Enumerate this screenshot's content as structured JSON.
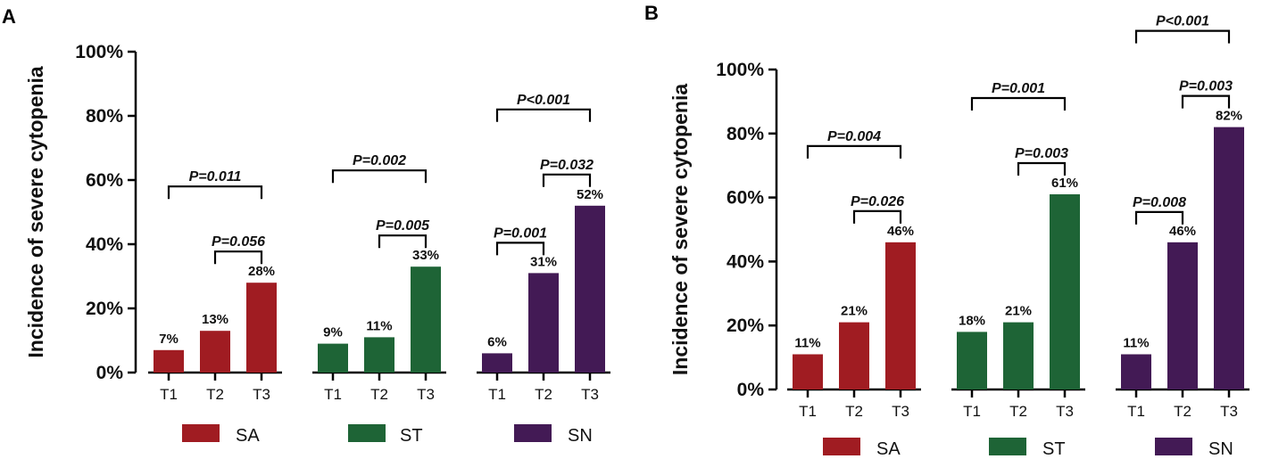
{
  "chart_data": [
    {
      "panel": "A",
      "type": "bar",
      "ylabel": "Incidence of severe cytopenia",
      "ylim": [
        0,
        100
      ],
      "yticks": [
        "0%",
        "20%",
        "40%",
        "60%",
        "80%",
        "100%"
      ],
      "groups": [
        {
          "name": "SA",
          "color": "#a01c22",
          "categories": [
            "T1",
            "T2",
            "T3"
          ],
          "values": [
            7,
            13,
            28
          ],
          "labels": [
            "7%",
            "13%",
            "28%"
          ],
          "comparisons": [
            {
              "from": 1,
              "to": 2,
              "text": "P=0.056"
            },
            {
              "from": 0,
              "to": 2,
              "text": "P=0.011"
            }
          ]
        },
        {
          "name": "ST",
          "color": "#1e6436",
          "categories": [
            "T1",
            "T2",
            "T3"
          ],
          "values": [
            9,
            11,
            33
          ],
          "labels": [
            "9%",
            "11%",
            "33%"
          ],
          "comparisons": [
            {
              "from": 1,
              "to": 2,
              "text": "P=0.005"
            },
            {
              "from": 0,
              "to": 2,
              "text": "P=0.002"
            }
          ]
        },
        {
          "name": "SN",
          "color": "#431a55",
          "categories": [
            "T1",
            "T2",
            "T3"
          ],
          "values": [
            6,
            31,
            52
          ],
          "labels": [
            "6%",
            "31%",
            "52%"
          ],
          "comparisons": [
            {
              "from": 0,
              "to": 1,
              "text": "P=0.001"
            },
            {
              "from": 1,
              "to": 2,
              "text": "P=0.032"
            },
            {
              "from": 0,
              "to": 2,
              "text": "P<0.001"
            }
          ]
        }
      ],
      "legend": [
        "SA",
        "ST",
        "SN"
      ]
    },
    {
      "panel": "B",
      "type": "bar",
      "ylabel": "Incidence of severe cytopenia",
      "ylim": [
        0,
        100
      ],
      "yticks": [
        "0%",
        "20%",
        "40%",
        "60%",
        "80%",
        "100%"
      ],
      "groups": [
        {
          "name": "SA",
          "color": "#a01c22",
          "categories": [
            "T1",
            "T2",
            "T3"
          ],
          "values": [
            11,
            21,
            46
          ],
          "labels": [
            "11%",
            "21%",
            "46%"
          ],
          "comparisons": [
            {
              "from": 1,
              "to": 2,
              "text": "P=0.026"
            },
            {
              "from": 0,
              "to": 2,
              "text": "P=0.004"
            }
          ]
        },
        {
          "name": "ST",
          "color": "#1e6436",
          "categories": [
            "T1",
            "T2",
            "T3"
          ],
          "values": [
            18,
            21,
            61
          ],
          "labels": [
            "18%",
            "21%",
            "61%"
          ],
          "comparisons": [
            {
              "from": 1,
              "to": 2,
              "text": "P=0.003"
            },
            {
              "from": 0,
              "to": 2,
              "text": "P=0.001"
            }
          ]
        },
        {
          "name": "SN",
          "color": "#431a55",
          "categories": [
            "T1",
            "T2",
            "T3"
          ],
          "values": [
            11,
            46,
            82
          ],
          "labels": [
            "11%",
            "46%",
            "82%"
          ],
          "comparisons": [
            {
              "from": 0,
              "to": 1,
              "text": "P=0.008"
            },
            {
              "from": 1,
              "to": 2,
              "text": "P=0.003"
            },
            {
              "from": 0,
              "to": 2,
              "text": "P<0.001"
            }
          ]
        }
      ],
      "legend": [
        "SA",
        "ST",
        "SN"
      ]
    }
  ]
}
